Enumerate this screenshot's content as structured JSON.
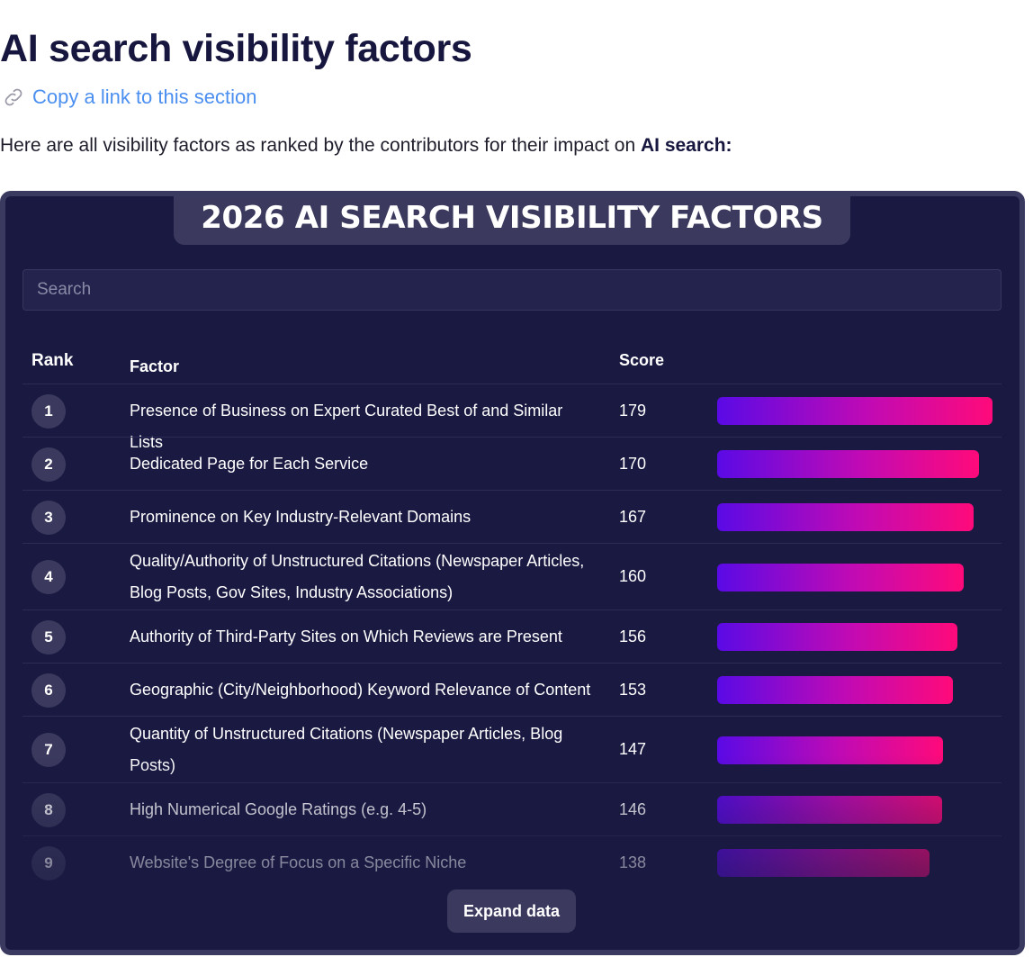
{
  "page": {
    "title": "AI search visibility factors",
    "copy_link_label": "Copy a link to this section",
    "intro_text": "Here are all visibility factors as ranked by the contributors for their impact on ",
    "intro_emphasis": "AI search:"
  },
  "panel": {
    "title": "2026 AI SEARCH VISIBILITY FACTORS",
    "search_placeholder": "Search",
    "columns": {
      "rank": "Rank",
      "factor": "Factor",
      "score": "Score"
    },
    "expand_label": "Expand data",
    "bar_max_score": 179
  },
  "rows": [
    {
      "rank": "1",
      "factor": "Presence of Business on Expert Curated Best of and Similar Lists",
      "score": "179"
    },
    {
      "rank": "2",
      "factor": "Dedicated Page for Each Service",
      "score": "170"
    },
    {
      "rank": "3",
      "factor": "Prominence on Key Industry-Relevant Domains",
      "score": "167"
    },
    {
      "rank": "4",
      "factor": "Quality/Authority of Unstructured Citations (Newspaper Articles, Blog Posts, Gov Sites, Industry Associations)",
      "score": "160"
    },
    {
      "rank": "5",
      "factor": "Authority of Third-Party Sites on Which Reviews are Present",
      "score": "156"
    },
    {
      "rank": "6",
      "factor": "Geographic (City/Neighborhood) Keyword Relevance of Content",
      "score": "153"
    },
    {
      "rank": "7",
      "factor": "Quantity of Unstructured Citations (Newspaper Articles, Blog Posts)",
      "score": "147"
    },
    {
      "rank": "8",
      "factor": "High Numerical Google Ratings (e.g. 4-5)",
      "score": "146"
    },
    {
      "rank": "9",
      "factor": "Website's Degree of Focus on a Specific Niche",
      "score": "138"
    }
  ]
}
